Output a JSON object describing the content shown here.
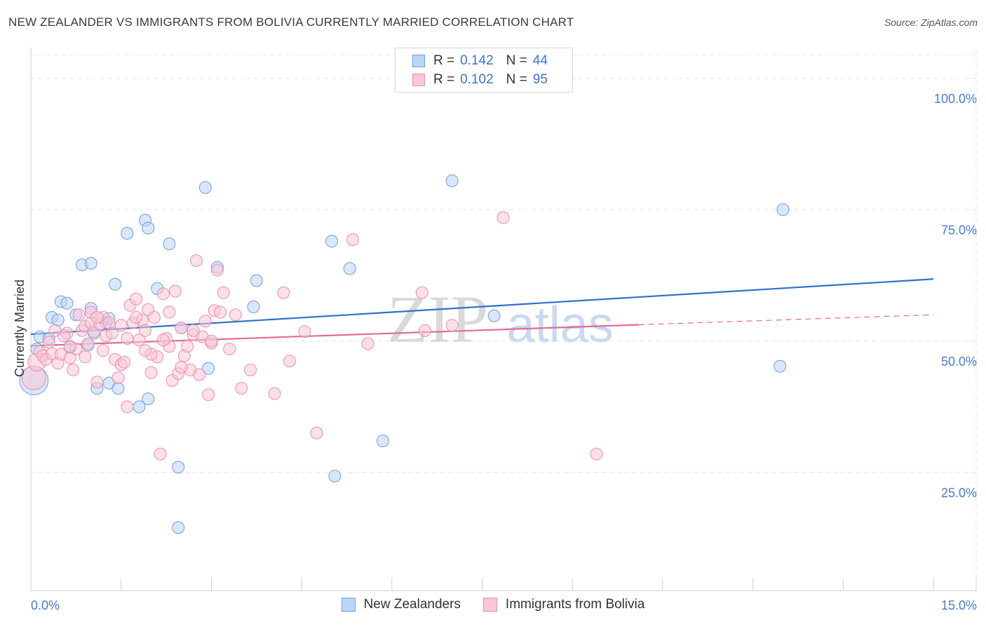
{
  "title": "NEW ZEALANDER VS IMMIGRANTS FROM BOLIVIA CURRENTLY MARRIED CORRELATION CHART",
  "source": "Source: ZipAtlas.com",
  "watermark": {
    "zip": "ZIP",
    "atlas": "atlas"
  },
  "legend_top": {
    "rows": [
      {
        "r_label": "R =",
        "r_value": "0.142",
        "n_label": "N =",
        "n_value": "44"
      },
      {
        "r_label": "R =",
        "r_value": "0.102",
        "n_label": "N =",
        "n_value": "95"
      }
    ]
  },
  "legend_bottom": [
    "New Zealanders",
    "Immigrants from Bolivia"
  ],
  "colors": {
    "blue_fill": "#bcd4f5",
    "blue_stroke": "#6f9fdf",
    "blue_line": "#2f72c8",
    "pink_fill": "#f9c7d6",
    "pink_stroke": "#ea8fae",
    "pink_line": "#e06b97",
    "grid": "#e3e3e3",
    "tick_text": "#4a7cc4"
  },
  "chart_data": {
    "type": "scatter",
    "title": "NEW ZEALANDER VS IMMIGRANTS FROM BOLIVIA CURRENTLY MARRIED CORRELATION CHART",
    "xlabel": "",
    "ylabel": "Currently Married",
    "xlim": [
      0,
      15
    ],
    "ylim": [
      2.5,
      104.5
    ],
    "x_tick_labels": [
      "0.0%",
      "15.0%"
    ],
    "y_ticks": [
      25,
      50,
      75,
      100
    ],
    "y_tick_labels": [
      "25.0%",
      "50.0%",
      "75.0%",
      "100.0%"
    ],
    "grid": true,
    "series": [
      {
        "name": "New Zealanders",
        "R": 0.142,
        "N": 44,
        "trend": {
          "x": [
            0,
            15
          ],
          "y": [
            51.3,
            61.8
          ],
          "dashed_extension": false
        },
        "points": [
          [
            0.05,
            42.5,
            2.4
          ],
          [
            0.1,
            48.5,
            1
          ],
          [
            0.15,
            50.8,
            1
          ],
          [
            0.3,
            50.5,
            1
          ],
          [
            0.35,
            54.5,
            1
          ],
          [
            0.45,
            54,
            1
          ],
          [
            0.5,
            57.5,
            1
          ],
          [
            0.6,
            57.2,
            1
          ],
          [
            0.65,
            48.8,
            1
          ],
          [
            0.75,
            55,
            1
          ],
          [
            0.85,
            64.5,
            1
          ],
          [
            1.0,
            64.8,
            1
          ],
          [
            1.0,
            56.2,
            1
          ],
          [
            1.1,
            41,
            1
          ],
          [
            1.25,
            53.5,
            1
          ],
          [
            1.3,
            54.3,
            1
          ],
          [
            1.3,
            42,
            1
          ],
          [
            1.4,
            60.8,
            1
          ],
          [
            1.45,
            41,
            1
          ],
          [
            1.6,
            70.5,
            1
          ],
          [
            1.8,
            37.5,
            1
          ],
          [
            1.9,
            73,
            1
          ],
          [
            1.95,
            71.5,
            1
          ],
          [
            1.95,
            39,
            1
          ],
          [
            2.1,
            60,
            1
          ],
          [
            2.3,
            68.5,
            1
          ],
          [
            2.45,
            26,
            1
          ],
          [
            2.45,
            14.5,
            1
          ],
          [
            2.5,
            52.5,
            1
          ],
          [
            2.9,
            79.2,
            1
          ],
          [
            2.95,
            44.8,
            1
          ],
          [
            3.1,
            64,
            1
          ],
          [
            3.7,
            56.5,
            1
          ],
          [
            3.75,
            61.5,
            1
          ],
          [
            5.0,
            69,
            1
          ],
          [
            5.05,
            24.3,
            1
          ],
          [
            5.3,
            63.8,
            1
          ],
          [
            5.85,
            31,
            1
          ],
          [
            7.0,
            80.5,
            1
          ],
          [
            7.7,
            54.8,
            1
          ],
          [
            12.5,
            75,
            1
          ],
          [
            12.45,
            45.2,
            1
          ],
          [
            0.95,
            49.2,
            1
          ],
          [
            1.05,
            51.5,
            1
          ]
        ]
      },
      {
        "name": "Immigrants from Bolivia",
        "R": 0.102,
        "N": 95,
        "trend": {
          "x": [
            0,
            10.1
          ],
          "y": [
            49.1,
            53.1
          ],
          "dashed_extension": true,
          "dashed_to": {
            "x": 15,
            "y": 55.0
          }
        },
        "points": [
          [
            0.05,
            43,
            2
          ],
          [
            0.1,
            46,
            1.5
          ],
          [
            0.15,
            48,
            1
          ],
          [
            0.2,
            47.2,
            1
          ],
          [
            0.25,
            46.5,
            1
          ],
          [
            0.3,
            49.8,
            1
          ],
          [
            0.35,
            47.6,
            1
          ],
          [
            0.45,
            45.8,
            1
          ],
          [
            0.5,
            47.5,
            1
          ],
          [
            0.6,
            51.5,
            1
          ],
          [
            0.65,
            46.8,
            1
          ],
          [
            0.7,
            44.5,
            1
          ],
          [
            0.8,
            55,
            1
          ],
          [
            0.85,
            52,
            1
          ],
          [
            0.9,
            52.8,
            1
          ],
          [
            0.95,
            49.5,
            1
          ],
          [
            1.0,
            53.5,
            1
          ],
          [
            1.05,
            51.8,
            1
          ],
          [
            1.1,
            42.2,
            1
          ],
          [
            1.15,
            53.2,
            1
          ],
          [
            1.2,
            54.5,
            1
          ],
          [
            1.25,
            51,
            1
          ],
          [
            1.3,
            53.5,
            1
          ],
          [
            1.35,
            51.5,
            1
          ],
          [
            1.4,
            46.5,
            1
          ],
          [
            1.45,
            43,
            1
          ],
          [
            1.5,
            45.5,
            1
          ],
          [
            1.55,
            46,
            1
          ],
          [
            1.6,
            37.5,
            1
          ],
          [
            1.65,
            56.8,
            1
          ],
          [
            1.7,
            53.5,
            1
          ],
          [
            1.75,
            58,
            1
          ],
          [
            1.8,
            50.2,
            1
          ],
          [
            1.85,
            54,
            1
          ],
          [
            1.9,
            52,
            1
          ],
          [
            1.95,
            56,
            1
          ],
          [
            2.0,
            44,
            1
          ],
          [
            2.05,
            54.5,
            1
          ],
          [
            2.1,
            47,
            1
          ],
          [
            2.15,
            28.5,
            1
          ],
          [
            2.2,
            59,
            1
          ],
          [
            2.25,
            50.5,
            1
          ],
          [
            2.3,
            55.5,
            1
          ],
          [
            2.35,
            42.5,
            1
          ],
          [
            2.4,
            59.5,
            1
          ],
          [
            2.45,
            43.8,
            1
          ],
          [
            2.5,
            52.5,
            1
          ],
          [
            2.55,
            47.2,
            1
          ],
          [
            2.6,
            49,
            1
          ],
          [
            2.65,
            44.5,
            1
          ],
          [
            2.7,
            51.2,
            1
          ],
          [
            2.75,
            65.3,
            1
          ],
          [
            2.8,
            43.6,
            1
          ],
          [
            2.85,
            50.8,
            1
          ],
          [
            2.9,
            53.8,
            1
          ],
          [
            2.95,
            39.8,
            1
          ],
          [
            3.0,
            49.6,
            1
          ],
          [
            3.05,
            55.8,
            1
          ],
          [
            3.1,
            63.5,
            1
          ],
          [
            3.15,
            55.5,
            1
          ],
          [
            3.2,
            59.2,
            1
          ],
          [
            3.3,
            48.5,
            1
          ],
          [
            3.5,
            41,
            1
          ],
          [
            3.65,
            44.5,
            1
          ],
          [
            4.05,
            40,
            1
          ],
          [
            4.2,
            59.2,
            1
          ],
          [
            4.3,
            46.2,
            1
          ],
          [
            4.55,
            51.8,
            1
          ],
          [
            4.75,
            32.5,
            1
          ],
          [
            5.35,
            69.3,
            1
          ],
          [
            5.6,
            49.5,
            1
          ],
          [
            6.5,
            59.2,
            1
          ],
          [
            6.55,
            52,
            1
          ],
          [
            7.0,
            53,
            1
          ],
          [
            7.85,
            73.5,
            1
          ],
          [
            9.4,
            28.5,
            1
          ],
          [
            0.55,
            51,
            1
          ],
          [
            0.4,
            52,
            1
          ],
          [
            0.75,
            48.5,
            1
          ],
          [
            1.0,
            55.5,
            1
          ],
          [
            1.2,
            48.2,
            1
          ],
          [
            1.5,
            53,
            1
          ],
          [
            1.75,
            54.5,
            1
          ],
          [
            2.0,
            47.5,
            1
          ],
          [
            2.3,
            49,
            1
          ],
          [
            2.5,
            45,
            1
          ],
          [
            2.7,
            52,
            1
          ],
          [
            3.0,
            50,
            1
          ],
          [
            3.4,
            55,
            1
          ],
          [
            1.6,
            50.5,
            1
          ],
          [
            1.9,
            48.2,
            1
          ],
          [
            0.9,
            47,
            1
          ],
          [
            0.65,
            49,
            1
          ],
          [
            2.2,
            50.2,
            1
          ],
          [
            1.1,
            54.5,
            1
          ]
        ]
      }
    ]
  }
}
